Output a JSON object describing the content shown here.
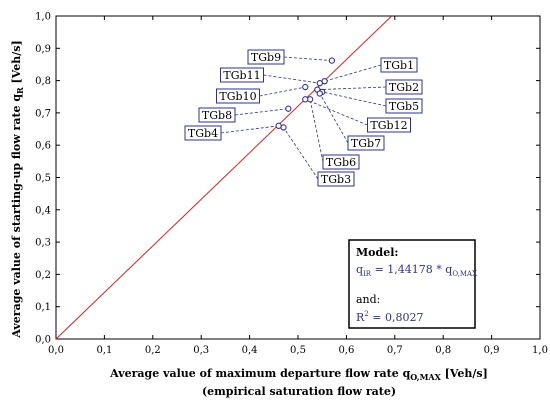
{
  "chart_data": {
    "type": "scatter",
    "xlabel_main": "Average value of maximum departure flow rate q",
    "xlabel_sub": "O,MAX",
    "xlabel_unit": " [Veh/s]",
    "xlabel_line2": "(empirical saturation flow rate)",
    "ylabel_main": "Average value of starting-up flow rate q",
    "ylabel_sub": "R",
    "ylabel_unit": " [Veh/s]",
    "xlim": [
      0,
      1
    ],
    "ylim": [
      0,
      1
    ],
    "xticks": [
      "0,0",
      "0,1",
      "0,2",
      "0,3",
      "0,4",
      "0,5",
      "0,6",
      "0,7",
      "0,8",
      "0,9",
      "1,0"
    ],
    "yticks": [
      "0,0",
      "0,1",
      "0,2",
      "0,3",
      "0,4",
      "0,5",
      "0,6",
      "0,7",
      "0,8",
      "0,9",
      "1,0"
    ],
    "grid": false,
    "reference_line": {
      "slope": 1.44178,
      "color": "#e02020"
    },
    "point_color": "#2e3192",
    "points": [
      {
        "name": "TGb1",
        "x": 0.555,
        "y": 0.798
      },
      {
        "name": "TGb2",
        "x": 0.54,
        "y": 0.772
      },
      {
        "name": "TGb3",
        "x": 0.47,
        "y": 0.655
      },
      {
        "name": "TGb4",
        "x": 0.46,
        "y": 0.66
      },
      {
        "name": "TGb5",
        "x": 0.55,
        "y": 0.765
      },
      {
        "name": "TGb6",
        "x": 0.525,
        "y": 0.742
      },
      {
        "name": "TGb7",
        "x": 0.545,
        "y": 0.76
      },
      {
        "name": "TGb8",
        "x": 0.48,
        "y": 0.713
      },
      {
        "name": "TGb9",
        "x": 0.57,
        "y": 0.862
      },
      {
        "name": "TGb10",
        "x": 0.515,
        "y": 0.78
      },
      {
        "name": "TGb11",
        "x": 0.545,
        "y": 0.792
      },
      {
        "name": "TGb12",
        "x": 0.515,
        "y": 0.742
      }
    ],
    "annotation": {
      "title": "Model:",
      "eq_lhs": "q",
      "eq_lhs_sub": "IR",
      "eq_mid": " = 1,44178 * q",
      "eq_rhs_sub": "O,MAX",
      "and": "and:",
      "r2_main": "R",
      "r2_sup": "2",
      "r2_val": " = 0,8027"
    }
  }
}
